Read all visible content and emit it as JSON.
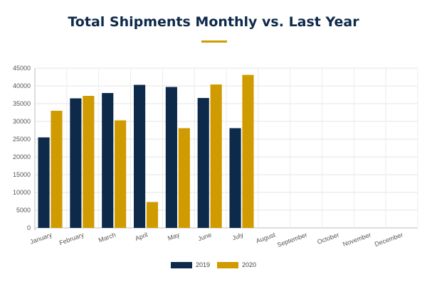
{
  "title": "Total Shipments Monthly vs. Last Year",
  "colors": {
    "accent": "#d09b00",
    "series2019": "#0d2a4a",
    "series2020": "#d09b00"
  },
  "chart_data": {
    "type": "bar",
    "title": "Total Shipments Monthly vs. Last Year",
    "xlabel": "",
    "ylabel": "",
    "ylim": [
      0,
      45000
    ],
    "yticks": [
      "0",
      "5000",
      "10000",
      "15000",
      "20000",
      "25000",
      "30000",
      "35000",
      "40000",
      "45000"
    ],
    "grid": true,
    "legend_position": "bottom-center",
    "categories": [
      "January",
      "February",
      "March",
      "April",
      "May",
      "June",
      "July",
      "August",
      "September",
      "October",
      "November",
      "December"
    ],
    "series": [
      {
        "name": "2019",
        "color": "#0d2a4a",
        "values": [
          25500,
          36500,
          38000,
          40300,
          39700,
          36600,
          28100,
          null,
          null,
          null,
          null,
          null
        ]
      },
      {
        "name": "2020",
        "color": "#d09b00",
        "values": [
          33000,
          37200,
          30300,
          7300,
          28100,
          40400,
          43100,
          null,
          null,
          null,
          null,
          null
        ]
      }
    ]
  }
}
